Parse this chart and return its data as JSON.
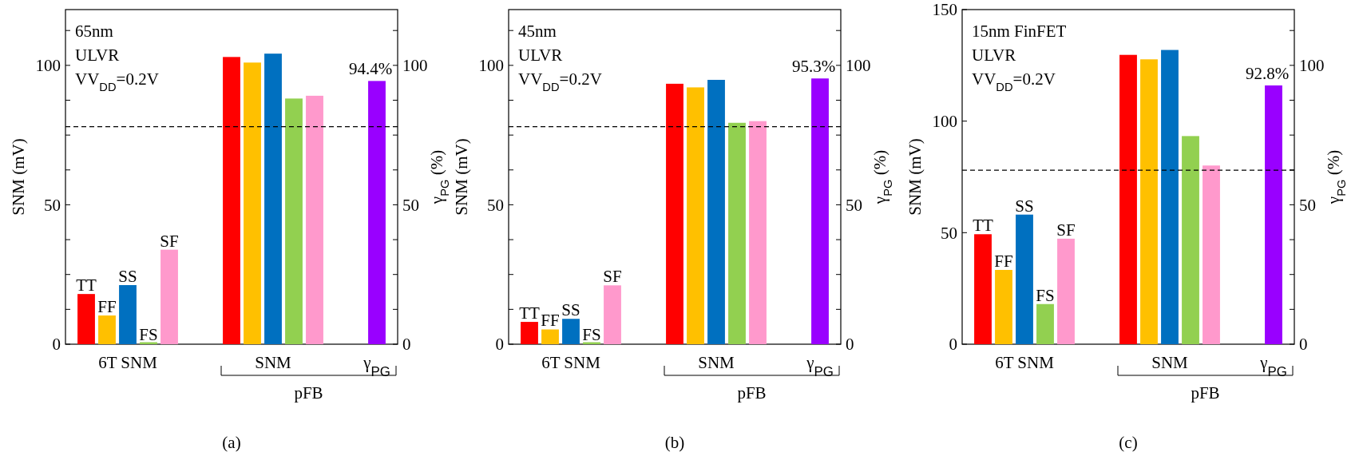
{
  "chart_data": [
    {
      "type": "bar",
      "title": "(a)",
      "ylabel": "SNM (mV)",
      "y2label": "γ$_{PG}$ (%)",
      "categories": [
        "6T SNM",
        "SNM",
        "γ$_{PG}$"
      ],
      "series": [
        {
          "name": "TT",
          "color": "#ff0000",
          "values": [
            18,
            103,
            null
          ]
        },
        {
          "name": "FF",
          "color": "#ffc000",
          "values": [
            10.3,
            101,
            null
          ]
        },
        {
          "name": "SS",
          "color": "#0070c0",
          "values": [
            21.2,
            104.2,
            null
          ]
        },
        {
          "name": "FS",
          "color": "#92d050",
          "values": [
            0.3,
            88.1,
            null
          ]
        },
        {
          "name": "SF",
          "color": "#ff99cc",
          "values": [
            33.9,
            89.1,
            null
          ]
        },
        {
          "color": "#9900ff",
          "axis": "y2",
          "values": [
            null,
            null,
            94.4
          ],
          "value_labels": [
            null,
            null,
            "94.4%"
          ]
        }
      ],
      "ylim": [
        0,
        120
      ],
      "yticks": [
        0,
        {
          "value": 12.5,
          "label": null
        },
        {
          "value": 25,
          "label": null
        },
        {
          "value": 37.5,
          "label": null
        },
        50,
        {
          "value": 62.5,
          "label": null
        },
        {
          "value": 75,
          "label": null
        },
        {
          "value": 87.5,
          "label": null
        },
        100,
        {
          "value": 112.5,
          "label": null
        }
      ],
      "y2lim": [
        0,
        120
      ],
      "y2ticks": [
        0,
        {
          "value": 12.5,
          "label": null
        },
        {
          "value": 25,
          "label": null
        },
        {
          "value": 37.5,
          "label": null
        },
        50,
        {
          "value": 62.5,
          "label": null
        },
        {
          "value": 75,
          "label": null
        },
        {
          "value": 87.5,
          "label": null
        },
        100,
        {
          "value": 112.5,
          "label": null
        }
      ],
      "ref_lines": [
        {
          "axis": "y",
          "value": 78,
          "line_style": "dashed",
          "color": "#000000"
        }
      ],
      "annotations": [
        "65nm",
        "ULVR",
        "VV$_{DD}$=0.2V",
        "pFB"
      ]
    },
    {
      "type": "bar",
      "title": "(b)",
      "ylabel": "SNM (mV)",
      "y2label": "γ$_{PG}$ (%)",
      "categories": [
        "6T SNM",
        "SNM",
        "γ$_{PG}$"
      ],
      "series": [
        {
          "name": "TT",
          "color": "#ff0000",
          "values": [
            8,
            93.4,
            null
          ]
        },
        {
          "name": "FF",
          "color": "#ffc000",
          "values": [
            5.3,
            92.1,
            null
          ]
        },
        {
          "name": "SS",
          "color": "#0070c0",
          "values": [
            9.1,
            94.8,
            null
          ]
        },
        {
          "name": "FS",
          "color": "#92d050",
          "values": [
            0.3,
            79.4,
            null
          ]
        },
        {
          "name": "SF",
          "color": "#ff99cc",
          "values": [
            21.1,
            80,
            null
          ]
        },
        {
          "color": "#9900ff",
          "axis": "y2",
          "values": [
            null,
            null,
            95.3
          ],
          "value_labels": [
            null,
            null,
            "95.3%"
          ]
        }
      ],
      "ylim": [
        0,
        120
      ],
      "yticks": [
        0,
        {
          "value": 12.5,
          "label": null
        },
        {
          "value": 25,
          "label": null
        },
        {
          "value": 37.5,
          "label": null
        },
        50,
        {
          "value": 62.5,
          "label": null
        },
        {
          "value": 75,
          "label": null
        },
        {
          "value": 87.5,
          "label": null
        },
        100,
        {
          "value": 112.5,
          "label": null
        }
      ],
      "y2lim": [
        0,
        120
      ],
      "y2ticks": [
        0,
        {
          "value": 12.5,
          "label": null
        },
        {
          "value": 25,
          "label": null
        },
        {
          "value": 37.5,
          "label": null
        },
        50,
        {
          "value": 62.5,
          "label": null
        },
        {
          "value": 75,
          "label": null
        },
        {
          "value": 87.5,
          "label": null
        },
        100,
        {
          "value": 112.5,
          "label": null
        }
      ],
      "ref_lines": [
        {
          "axis": "y",
          "value": 78,
          "line_style": "dashed",
          "color": "#000000"
        }
      ],
      "annotations": [
        "45nm",
        "ULVR",
        "VV$_{DD}$=0.2V",
        "pFB"
      ]
    },
    {
      "type": "bar",
      "title": "(c)",
      "ylabel": "SNM (mV)",
      "y2label": "γ$_{PG}$ (%)",
      "categories": [
        "6T SNM",
        "SNM",
        "γ$_{PG}$"
      ],
      "series": [
        {
          "name": "TT",
          "color": "#ff0000",
          "values": [
            49.3,
            129.7,
            null
          ]
        },
        {
          "name": "FF",
          "color": "#ffc000",
          "values": [
            33.3,
            127.7,
            null
          ]
        },
        {
          "name": "SS",
          "color": "#0070c0",
          "values": [
            58.1,
            131.9,
            null
          ]
        },
        {
          "name": "FS",
          "color": "#92d050",
          "values": [
            18,
            93.3,
            null
          ]
        },
        {
          "name": "SF",
          "color": "#ff99cc",
          "values": [
            47.3,
            80.1,
            null
          ]
        },
        {
          "color": "#9900ff",
          "axis": "y2",
          "values": [
            null,
            null,
            92.8
          ],
          "value_labels": [
            null,
            null,
            "92.8%"
          ]
        }
      ],
      "ylim": [
        0,
        150
      ],
      "yticks": [
        0,
        50,
        100,
        150
      ],
      "y2lim": [
        0,
        120
      ],
      "y2ticks": [
        0,
        {
          "value": 12.5,
          "label": null
        },
        {
          "value": 25,
          "label": null
        },
        {
          "value": 37.5,
          "label": null
        },
        50,
        {
          "value": 62.5,
          "label": null
        },
        {
          "value": 75,
          "label": null
        },
        {
          "value": 87.5,
          "label": null
        },
        100,
        {
          "value": 112.5,
          "label": null
        }
      ],
      "ref_lines": [
        {
          "axis": "y",
          "value": 78,
          "line_style": "dashed",
          "color": "#000000"
        }
      ],
      "annotations": [
        "15nm FinFET",
        "ULVR",
        "VV$_{DD}$=0.2V",
        "pFB"
      ]
    }
  ]
}
